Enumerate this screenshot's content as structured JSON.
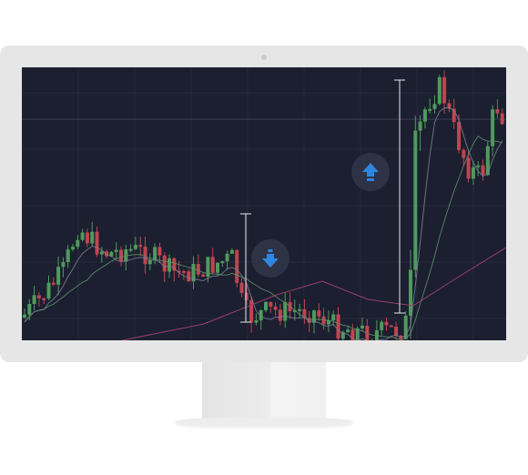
{
  "chart_data": {
    "type": "candlestick",
    "title": "",
    "xlabel": "",
    "ylabel": "",
    "ylim": [
      0,
      100
    ],
    "grid": true,
    "legend": "none",
    "colors": {
      "up": "#4f9a5c",
      "down": "#c0444f",
      "background": "#1b1f30",
      "ma_fast": "#7f8596",
      "ma_mid": "#5f8f68",
      "ma_slow": "#9a3f6a",
      "icon": "#2f86e0"
    },
    "signals": [
      {
        "name": "sell-signal",
        "icon": "arrow-down-icon",
        "direction": "down"
      },
      {
        "name": "buy-signal",
        "icon": "arrow-up-icon",
        "direction": "up"
      }
    ]
  }
}
